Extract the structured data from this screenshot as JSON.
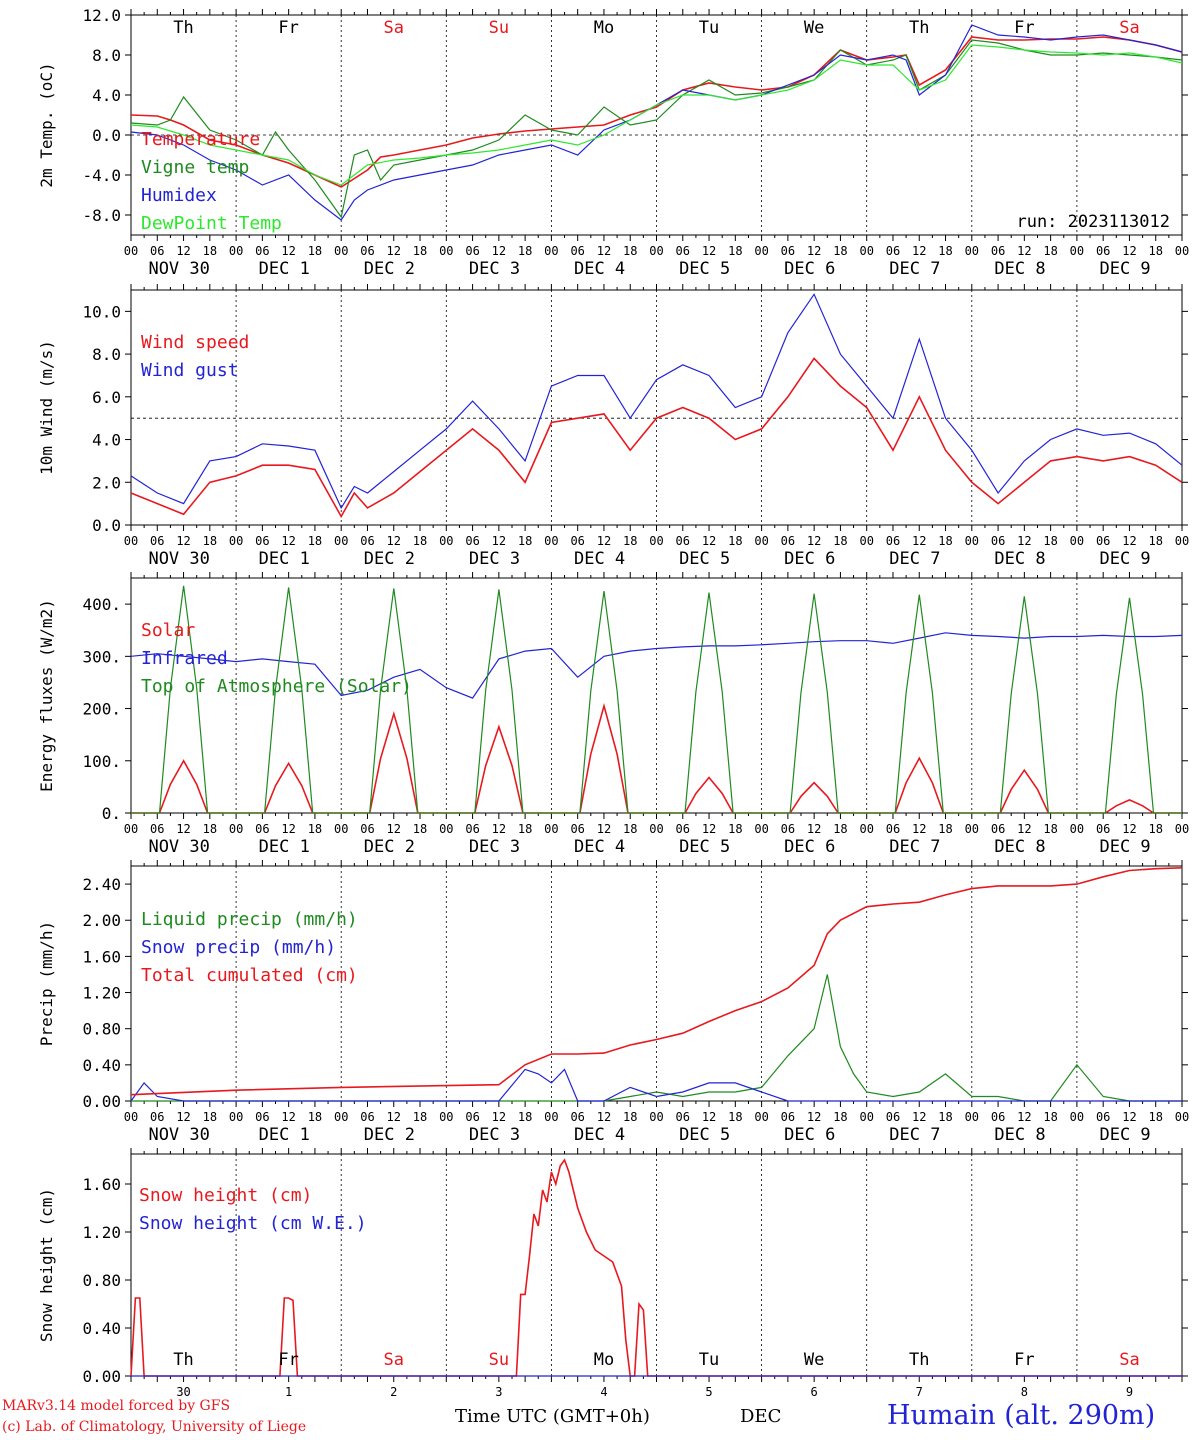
{
  "footer": {
    "credit_line_1": "MARv3.14 model forced by GFS",
    "credit_line_2": "(c) Lab. of Climatology, University of Liege",
    "time_label": "Time UTC (GMT+0h)",
    "month_label": "DEC",
    "station_label": "Humain (alt. 290m)"
  },
  "colors": {
    "red": "#e8191e",
    "blue": "#2323d6",
    "dark_green": "#1f8a1f",
    "light_green": "#2ee82e",
    "weekend": "#e8191e",
    "weekday": "#000000"
  },
  "time_axis": {
    "hour_labels": [
      "00",
      "06",
      "12",
      "18"
    ],
    "final_hour_label": "00",
    "date_labels": [
      "NOV 30",
      "DEC  1",
      "DEC  2",
      "DEC  3",
      "DEC  4",
      "DEC  5",
      "DEC  6",
      "DEC  7",
      "DEC  8",
      "DEC  9"
    ],
    "weekdays": [
      "Th",
      "Fr",
      "Sa",
      "Su",
      "Mo",
      "Tu",
      "We",
      "Th",
      "Fr",
      "Sa"
    ],
    "weekend_flags": [
      false,
      false,
      true,
      true,
      false,
      false,
      false,
      false,
      false,
      true
    ],
    "day_numbers": [
      "30",
      "1",
      "2",
      "3",
      "4",
      "5",
      "6",
      "7",
      "8",
      "9"
    ]
  },
  "chart_data": [
    {
      "type": "line",
      "id": "temp",
      "ylabel": "2m Temp. (oC)",
      "ylim": [
        -10,
        12
      ],
      "yticks": [
        "-8.0",
        "-4.0",
        "0.0",
        "4.0",
        "8.0",
        "12.0"
      ],
      "ytick_values": [
        -8,
        -4,
        0,
        4,
        8,
        12
      ],
      "reference_line": 0,
      "run_label": "run: 2023113012",
      "x_unit": "hours since NOV 30 00 UTC",
      "series": [
        {
          "name": "Temperature",
          "color": "red",
          "x": [
            0,
            6,
            9,
            12,
            18,
            24,
            30,
            36,
            42,
            48,
            54,
            57,
            60,
            66,
            72,
            78,
            84,
            90,
            96,
            102,
            108,
            114,
            120,
            126,
            132,
            138,
            144,
            150,
            156,
            162,
            168,
            174,
            177,
            180,
            186,
            192,
            198,
            204,
            210,
            216,
            222,
            228,
            234,
            240
          ],
          "y": [
            2.0,
            1.9,
            1.5,
            1.0,
            -0.5,
            -1.0,
            -2.0,
            -2.8,
            -4.0,
            -5.2,
            -3.5,
            -2.2,
            -2.0,
            -1.5,
            -1.0,
            -0.3,
            0.1,
            0.4,
            0.6,
            0.8,
            1.0,
            2.0,
            2.8,
            4.5,
            5.2,
            4.8,
            4.5,
            4.8,
            6.0,
            8.5,
            7.5,
            7.8,
            8.0,
            5.0,
            6.5,
            9.8,
            9.5,
            9.5,
            9.6,
            9.6,
            9.8,
            9.5,
            9.0,
            8.3
          ]
        },
        {
          "name": "Vigne temp",
          "color": "dark_green",
          "x": [
            0,
            6,
            9,
            12,
            18,
            24,
            30,
            33,
            36,
            42,
            48,
            51,
            54,
            57,
            60,
            66,
            72,
            78,
            84,
            90,
            96,
            102,
            108,
            114,
            120,
            126,
            132,
            138,
            144,
            150,
            156,
            162,
            168,
            174,
            177,
            180,
            186,
            192,
            198,
            204,
            210,
            216,
            222,
            228,
            234,
            240
          ],
          "y": [
            1.2,
            1.0,
            1.5,
            3.8,
            0.5,
            -0.5,
            -2.0,
            0.3,
            -1.5,
            -4.5,
            -8.2,
            -2.0,
            -1.5,
            -4.5,
            -3.0,
            -2.5,
            -2.0,
            -1.5,
            -0.5,
            2.0,
            0.5,
            0.0,
            2.8,
            1.0,
            1.5,
            4.0,
            5.5,
            4.0,
            4.2,
            4.8,
            5.5,
            8.5,
            7.0,
            7.5,
            8.0,
            4.5,
            6.0,
            9.5,
            9.2,
            8.5,
            8.0,
            8.0,
            8.2,
            8.0,
            7.8,
            7.5
          ]
        },
        {
          "name": "Humidex",
          "color": "blue",
          "x": [
            0,
            6,
            12,
            18,
            24,
            30,
            36,
            42,
            48,
            51,
            54,
            60,
            66,
            72,
            78,
            84,
            90,
            96,
            102,
            108,
            114,
            120,
            126,
            132,
            138,
            144,
            150,
            156,
            162,
            168,
            174,
            177,
            180,
            186,
            192,
            198,
            204,
            210,
            216,
            222,
            228,
            234,
            240
          ],
          "y": [
            0.3,
            0.0,
            -1.0,
            -2.5,
            -3.5,
            -5.0,
            -4.0,
            -6.5,
            -8.5,
            -6.5,
            -5.5,
            -4.5,
            -4.0,
            -3.5,
            -3.0,
            -2.0,
            -1.5,
            -1.0,
            -2.0,
            0.5,
            1.5,
            3.0,
            4.5,
            4.0,
            3.5,
            4.0,
            5.0,
            6.0,
            8.0,
            7.5,
            8.0,
            7.5,
            4.0,
            6.0,
            11.0,
            10.0,
            9.8,
            9.5,
            9.8,
            10.0,
            9.5,
            9.0,
            8.3
          ]
        },
        {
          "name": "DewPoint Temp",
          "color": "light_green",
          "x": [
            0,
            6,
            12,
            18,
            24,
            30,
            36,
            42,
            48,
            54,
            60,
            66,
            72,
            78,
            84,
            90,
            96,
            102,
            108,
            114,
            120,
            126,
            132,
            138,
            144,
            150,
            156,
            162,
            168,
            174,
            180,
            186,
            192,
            198,
            204,
            210,
            216,
            222,
            228,
            234,
            240
          ],
          "y": [
            1.0,
            0.8,
            0.0,
            -1.0,
            -1.5,
            -2.0,
            -2.5,
            -4.0,
            -5.0,
            -3.0,
            -2.5,
            -2.3,
            -2.0,
            -1.8,
            -1.5,
            -1.0,
            -0.5,
            -1.0,
            0.0,
            1.5,
            3.0,
            4.0,
            4.0,
            3.5,
            4.0,
            4.5,
            5.5,
            7.5,
            7.0,
            7.0,
            4.5,
            5.5,
            9.0,
            8.8,
            8.5,
            8.3,
            8.2,
            8.0,
            8.2,
            7.8,
            7.2
          ]
        }
      ]
    },
    {
      "type": "line",
      "id": "wind",
      "ylabel": "10m Wind (m/s)",
      "ylim": [
        0,
        11
      ],
      "yticks": [
        "0.0",
        "2.0",
        "4.0",
        "6.0",
        "8.0",
        "10.0"
      ],
      "ytick_values": [
        0,
        2,
        4,
        6,
        8,
        10
      ],
      "reference_line": 5,
      "x_unit": "hours since NOV 30 00 UTC",
      "series": [
        {
          "name": "Wind speed",
          "color": "red",
          "x": [
            0,
            6,
            12,
            18,
            24,
            30,
            36,
            42,
            48,
            51,
            54,
            60,
            66,
            72,
            78,
            84,
            90,
            96,
            102,
            108,
            114,
            120,
            126,
            132,
            138,
            144,
            150,
            156,
            162,
            168,
            174,
            180,
            186,
            192,
            198,
            204,
            210,
            216,
            222,
            228,
            234,
            240
          ],
          "y": [
            1.5,
            1.0,
            0.5,
            2.0,
            2.3,
            2.8,
            2.8,
            2.6,
            0.4,
            1.5,
            0.8,
            1.5,
            2.5,
            3.5,
            4.5,
            3.5,
            2.0,
            4.8,
            5.0,
            5.2,
            3.5,
            5.0,
            5.5,
            5.0,
            4.0,
            4.5,
            6.0,
            7.8,
            6.5,
            5.5,
            3.5,
            6.0,
            3.5,
            2.0,
            1.0,
            2.0,
            3.0,
            3.2,
            3.0,
            3.2,
            2.8,
            2.0
          ]
        },
        {
          "name": "Wind gust",
          "color": "blue",
          "x": [
            0,
            6,
            12,
            18,
            24,
            30,
            36,
            42,
            48,
            51,
            54,
            60,
            66,
            72,
            78,
            84,
            90,
            96,
            102,
            108,
            114,
            120,
            126,
            132,
            138,
            144,
            150,
            156,
            162,
            168,
            174,
            180,
            186,
            192,
            198,
            204,
            210,
            216,
            222,
            228,
            234,
            240
          ],
          "y": [
            2.3,
            1.5,
            1.0,
            3.0,
            3.2,
            3.8,
            3.7,
            3.5,
            0.8,
            1.8,
            1.5,
            2.5,
            3.5,
            4.5,
            5.8,
            4.5,
            3.0,
            6.5,
            7.0,
            7.0,
            5.0,
            6.8,
            7.5,
            7.0,
            5.5,
            6.0,
            9.0,
            10.8,
            8.0,
            6.5,
            5.0,
            8.7,
            5.0,
            3.5,
            1.5,
            3.0,
            4.0,
            4.5,
            4.2,
            4.3,
            3.8,
            2.8
          ]
        }
      ]
    },
    {
      "type": "line",
      "id": "energy",
      "ylabel": "Energy fluxes (W/m2)",
      "ylim": [
        0,
        450
      ],
      "yticks": [
        "0.",
        "100.",
        "200.",
        "300.",
        "400."
      ],
      "ytick_values": [
        0,
        100,
        200,
        300,
        400
      ],
      "x_unit": "hours since NOV 30 00 UTC",
      "series": [
        {
          "name": "Solar",
          "color": "red",
          "daily_peaks_at_12h": [
            100,
            95,
            190,
            165,
            205,
            68,
            58,
            105,
            82,
            25
          ]
        },
        {
          "name": "Infrared",
          "color": "blue",
          "x": [
            0,
            6,
            12,
            18,
            24,
            30,
            36,
            42,
            48,
            54,
            60,
            66,
            72,
            78,
            84,
            90,
            96,
            102,
            108,
            114,
            120,
            126,
            132,
            138,
            144,
            150,
            156,
            162,
            168,
            174,
            180,
            186,
            192,
            198,
            204,
            210,
            216,
            222,
            228,
            234,
            240
          ],
          "y": [
            300,
            305,
            300,
            295,
            290,
            295,
            290,
            285,
            225,
            235,
            260,
            275,
            240,
            220,
            295,
            310,
            315,
            260,
            300,
            310,
            315,
            318,
            320,
            320,
            322,
            325,
            328,
            330,
            330,
            325,
            335,
            345,
            340,
            338,
            335,
            338,
            338,
            340,
            338,
            338,
            340
          ]
        },
        {
          "name": "Top of Atmosphere (Solar)",
          "color": "dark_green",
          "daily_peaks_at_12h": [
            435,
            432,
            430,
            428,
            425,
            422,
            420,
            418,
            415,
            412
          ]
        }
      ]
    },
    {
      "type": "line",
      "id": "precip",
      "ylabel": "Precip (mm/h)",
      "ylim": [
        0,
        2.6
      ],
      "yticks": [
        "0.00",
        "0.40",
        "0.80",
        "1.20",
        "1.60",
        "2.00",
        "2.40"
      ],
      "ytick_values": [
        0,
        0.4,
        0.8,
        1.2,
        1.6,
        2.0,
        2.4
      ],
      "x_unit": "hours since NOV 30 00 UTC",
      "series": [
        {
          "name": "Liquid precip (mm/h)",
          "color": "dark_green",
          "x": [
            0,
            108,
            114,
            120,
            126,
            132,
            138,
            144,
            150,
            156,
            159,
            162,
            165,
            168,
            174,
            180,
            186,
            192,
            198,
            204,
            210,
            216,
            222,
            228,
            234,
            240
          ],
          "y": [
            0,
            0,
            0.05,
            0.1,
            0.05,
            0.1,
            0.1,
            0.15,
            0.5,
            0.8,
            1.4,
            0.6,
            0.3,
            0.1,
            0.05,
            0.1,
            0.3,
            0.05,
            0.05,
            0,
            0,
            0.4,
            0.05,
            0,
            0,
            0
          ]
        },
        {
          "name": "Snow precip (mm/h)",
          "color": "blue",
          "x": [
            0,
            3,
            6,
            12,
            18,
            24,
            84,
            90,
            93,
            96,
            99,
            102,
            108,
            114,
            120,
            126,
            132,
            138,
            144,
            150,
            240
          ],
          "y": [
            0,
            0.2,
            0.05,
            0,
            0,
            0,
            0,
            0.35,
            0.3,
            0.2,
            0.35,
            0,
            0,
            0.15,
            0.05,
            0.1,
            0.2,
            0.2,
            0.1,
            0,
            0
          ]
        },
        {
          "name": "Total cumulated (cm)",
          "color": "red",
          "x": [
            0,
            24,
            48,
            72,
            84,
            90,
            96,
            102,
            108,
            114,
            120,
            126,
            132,
            138,
            144,
            150,
            156,
            159,
            162,
            168,
            174,
            180,
            186,
            192,
            198,
            204,
            210,
            216,
            222,
            228,
            234,
            240
          ],
          "y": [
            0.07,
            0.12,
            0.15,
            0.17,
            0.18,
            0.4,
            0.52,
            0.52,
            0.53,
            0.62,
            0.68,
            0.75,
            0.88,
            1.0,
            1.1,
            1.25,
            1.5,
            1.85,
            2.0,
            2.15,
            2.18,
            2.2,
            2.28,
            2.35,
            2.38,
            2.38,
            2.38,
            2.4,
            2.48,
            2.55,
            2.57,
            2.58
          ]
        }
      ]
    },
    {
      "type": "line",
      "id": "snow",
      "ylabel": "Snow height (cm)",
      "ylim": [
        0,
        1.85
      ],
      "yticks": [
        "0.00",
        "0.40",
        "0.80",
        "1.20",
        "1.60"
      ],
      "ytick_values": [
        0,
        0.4,
        0.8,
        1.2,
        1.6
      ],
      "x_unit": "hours since NOV 30 00 UTC",
      "series": [
        {
          "name": "Snow height (cm)",
          "color": "red",
          "x": [
            0,
            1,
            2,
            3,
            34,
            35,
            36,
            37,
            38,
            88,
            89,
            90,
            91,
            92,
            93,
            94,
            95,
            96,
            97,
            98,
            99,
            100,
            101,
            102,
            104,
            106,
            108,
            110,
            112,
            113,
            114,
            115,
            116,
            117,
            118,
            119,
            120,
            240
          ],
          "y": [
            0,
            0.65,
            0.65,
            0,
            0,
            0.65,
            0.65,
            0.63,
            0,
            0,
            0.68,
            0.68,
            1.0,
            1.35,
            1.25,
            1.55,
            1.45,
            1.7,
            1.6,
            1.75,
            1.8,
            1.7,
            1.55,
            1.4,
            1.2,
            1.05,
            1.0,
            0.95,
            0.75,
            0.3,
            0,
            0,
            0.6,
            0.55,
            0,
            0,
            0,
            0
          ]
        },
        {
          "name": "Snow height (cm W.E.)",
          "color": "blue",
          "x": [
            0,
            240
          ],
          "y": [
            0,
            0
          ]
        }
      ]
    }
  ]
}
